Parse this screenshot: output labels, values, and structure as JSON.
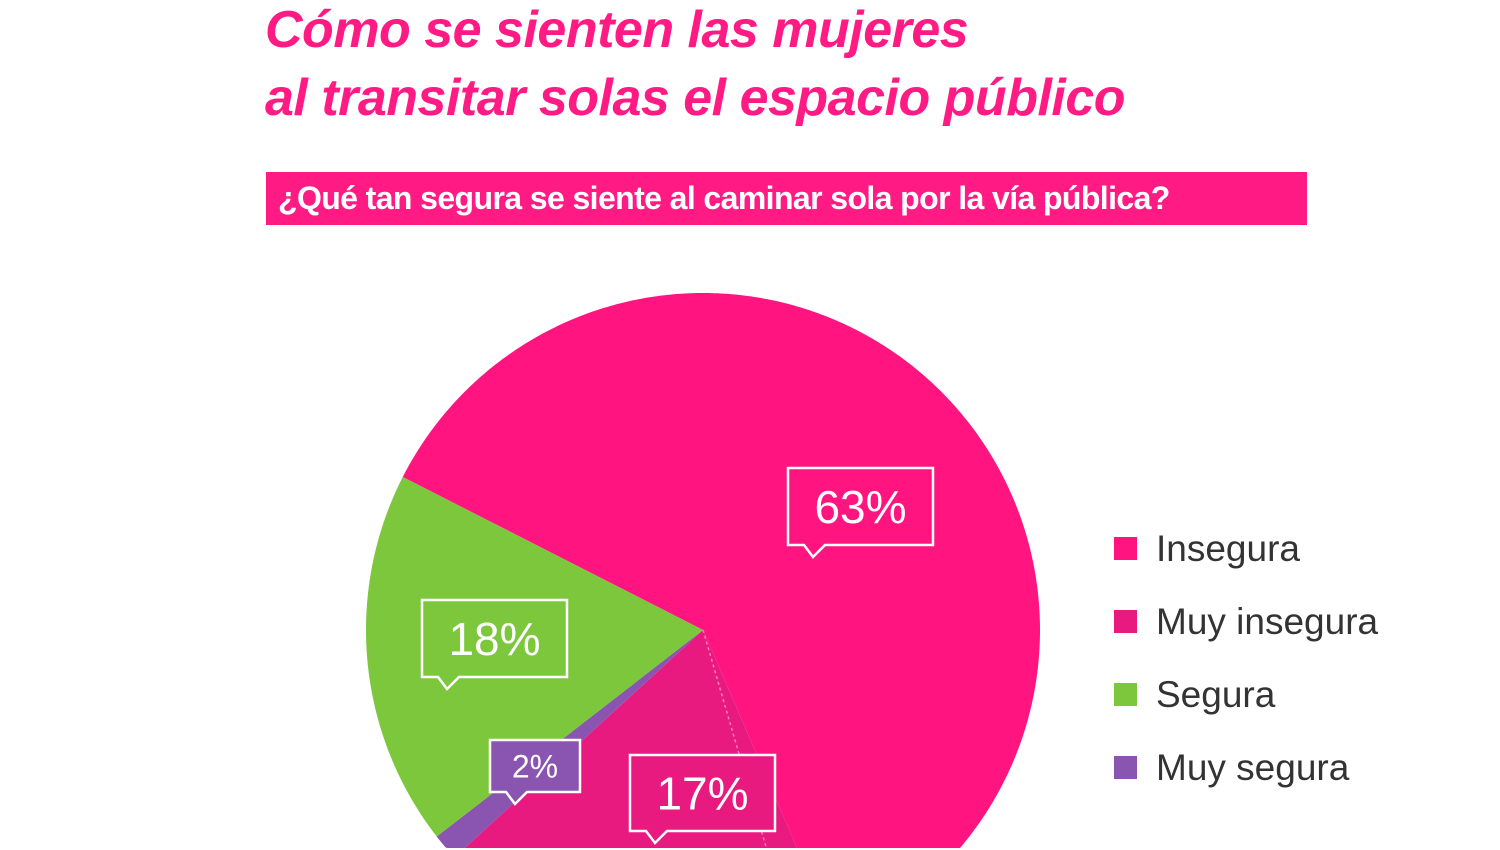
{
  "chart_data": {
    "type": "pie",
    "title": [
      "Cómo se sienten las mujeres",
      "al transitar solas el espacio público"
    ],
    "subtitle": "¿Qué tan segura se siente al caminar sola por la vía pública?",
    "categories": [
      "Insegura",
      "Muy insegura",
      "Segura",
      "Muy segura"
    ],
    "values": [
      63,
      17,
      18,
      2
    ],
    "data_labels": [
      "63%",
      "17%",
      "18%",
      "2%"
    ],
    "colors": [
      "#ff1480",
      "#e8197f",
      "#7dc73d",
      "#8a55b0"
    ],
    "legend_placement": "right"
  }
}
